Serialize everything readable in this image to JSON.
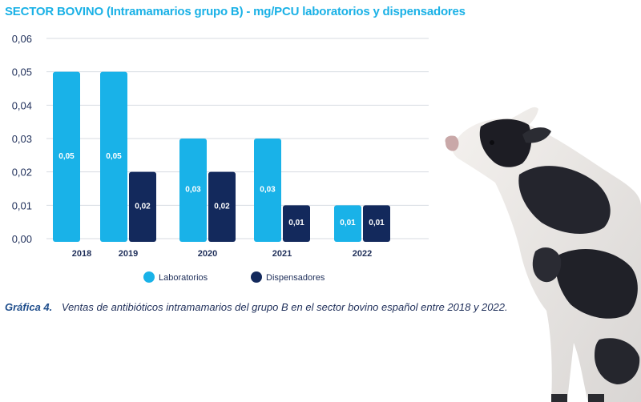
{
  "chart_data": {
    "type": "bar",
    "title": "SECTOR BOVINO (Intramamarios grupo B) - mg/PCU laboratorios y dispensadores",
    "categories": [
      "2018",
      "2019",
      "2020",
      "2021",
      "2022"
    ],
    "series": [
      {
        "name": "Laboratorios",
        "values": [
          0.05,
          0.05,
          0.03,
          0.03,
          0.01
        ],
        "labels": [
          "0,05",
          "0,05",
          "0,03",
          "0,03",
          "0,01"
        ],
        "color": "#19b2e8"
      },
      {
        "name": "Dispensadores",
        "values": [
          null,
          0.02,
          0.02,
          0.01,
          0.01
        ],
        "labels": [
          "",
          "0,02",
          "0,02",
          "0,01",
          "0,01"
        ],
        "color": "#13295c"
      }
    ],
    "bar_heights_note": "",
    "ylim": [
      0,
      0.06
    ],
    "yticks": [
      0,
      0.01,
      0.02,
      0.03,
      0.04,
      0.05,
      0.06
    ],
    "ytick_labels": [
      "0,00",
      "0,01",
      "0,02",
      "0,03",
      "0,04",
      "0,05",
      "0,06"
    ],
    "grid": true,
    "legend_position": "bottom"
  },
  "caption": {
    "prefix": "Gráfica 4.",
    "text": "Ventas de antibióticos intramamarios del grupo B en el sector bovino español entre 2018 y 2022."
  },
  "illustration": {
    "icon": "cow-illustration"
  }
}
